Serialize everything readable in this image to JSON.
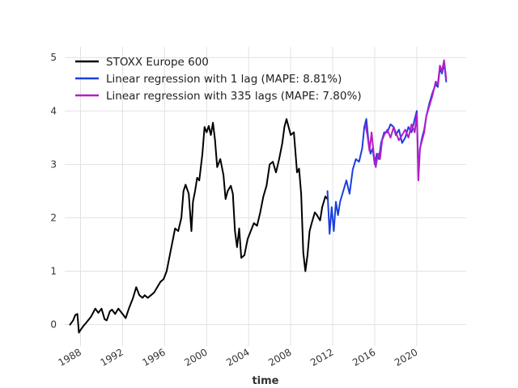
{
  "chart_data": {
    "type": "line",
    "title": "",
    "xlabel": "time",
    "ylabel": "",
    "xlim": [
      1986.5,
      2024.7
    ],
    "ylim": [
      -0.4,
      5.2
    ],
    "x_ticks": [
      1988,
      1992,
      1996,
      2000,
      2004,
      2008,
      2012,
      2016,
      2020
    ],
    "x_tick_labels": [
      "1988",
      "1992",
      "1996",
      "2000",
      "2004",
      "2008",
      "2012",
      "2016",
      "2020"
    ],
    "y_ticks": [
      0,
      1,
      2,
      3,
      4,
      5
    ],
    "y_tick_labels": [
      "0",
      "1",
      "2",
      "3",
      "4",
      "5"
    ],
    "grid": true,
    "legend_position": "top-left",
    "series": [
      {
        "name": "STOXX Europe 600",
        "color": "#000000",
        "x": [
          1987.0,
          1987.3,
          1987.5,
          1987.7,
          1987.85,
          1988.0,
          1988.3,
          1988.6,
          1989.0,
          1989.4,
          1989.7,
          1990.0,
          1990.3,
          1990.5,
          1990.8,
          1991.0,
          1991.3,
          1991.6,
          1992.0,
          1992.3,
          1992.6,
          1992.8,
          1993.0,
          1993.3,
          1993.6,
          1993.9,
          1994.1,
          1994.4,
          1994.7,
          1995.0,
          1995.3,
          1995.6,
          1995.9,
          1996.2,
          1996.5,
          1996.8,
          1997.0,
          1997.3,
          1997.6,
          1997.8,
          1998.0,
          1998.3,
          1998.55,
          1998.7,
          1998.9,
          1999.1,
          1999.3,
          1999.6,
          1999.8,
          2000.0,
          2000.2,
          2000.4,
          2000.6,
          2000.8,
          2001.0,
          2001.3,
          2001.6,
          2001.8,
          2002.0,
          2002.3,
          2002.5,
          2002.7,
          2002.9,
          2003.1,
          2003.3,
          2003.6,
          2003.9,
          2004.2,
          2004.5,
          2004.8,
          2005.1,
          2005.4,
          2005.7,
          2006.0,
          2006.3,
          2006.6,
          2006.9,
          2007.2,
          2007.4,
          2007.6,
          2007.8,
          2008.0,
          2008.3,
          2008.6,
          2008.8,
          2009.0,
          2009.2,
          2009.4,
          2009.6,
          2009.8,
          2010.0,
          2010.3,
          2010.5,
          2010.8,
          2011.0,
          2011.3,
          2011.5
        ],
        "values": [
          0.0,
          0.08,
          0.18,
          0.2,
          -0.15,
          -0.1,
          -0.02,
          0.05,
          0.15,
          0.3,
          0.22,
          0.3,
          0.1,
          0.08,
          0.25,
          0.28,
          0.2,
          0.3,
          0.2,
          0.12,
          0.3,
          0.4,
          0.5,
          0.7,
          0.55,
          0.5,
          0.55,
          0.5,
          0.55,
          0.6,
          0.7,
          0.8,
          0.85,
          1.0,
          1.3,
          1.6,
          1.8,
          1.75,
          2.0,
          2.5,
          2.62,
          2.45,
          1.75,
          2.3,
          2.5,
          2.75,
          2.7,
          3.2,
          3.7,
          3.6,
          3.72,
          3.55,
          3.78,
          3.45,
          2.95,
          3.1,
          2.8,
          2.35,
          2.5,
          2.6,
          2.45,
          1.75,
          1.45,
          1.8,
          1.25,
          1.3,
          1.6,
          1.75,
          1.9,
          1.85,
          2.1,
          2.4,
          2.6,
          3.0,
          3.05,
          2.85,
          3.1,
          3.4,
          3.7,
          3.85,
          3.7,
          3.55,
          3.6,
          2.85,
          2.92,
          2.45,
          1.35,
          1.0,
          1.3,
          1.75,
          1.9,
          2.1,
          2.05,
          1.95,
          2.2,
          2.4,
          2.35
        ]
      },
      {
        "name": "Linear regression with 1 lag (MAPE: 8.81%)",
        "color": "#1a3fe0",
        "x": [
          2011.5,
          2011.7,
          2011.9,
          2012.1,
          2012.3,
          2012.5,
          2012.7,
          2013.0,
          2013.3,
          2013.6,
          2013.9,
          2014.2,
          2014.5,
          2014.8,
          2015.0,
          2015.2,
          2015.4,
          2015.6,
          2015.8,
          2016.0,
          2016.2,
          2016.4,
          2016.6,
          2016.9,
          2017.2,
          2017.5,
          2017.8,
          2018.0,
          2018.3,
          2018.6,
          2018.9,
          2019.2,
          2019.5,
          2019.8,
          2020.0,
          2020.15,
          2020.3,
          2020.5,
          2020.7,
          2020.9,
          2021.2,
          2021.5,
          2021.8,
          2022.0,
          2022.2,
          2022.4,
          2022.6,
          2022.8
        ],
        "values": [
          2.5,
          1.7,
          2.2,
          1.75,
          2.3,
          2.05,
          2.3,
          2.5,
          2.7,
          2.45,
          2.9,
          3.1,
          3.05,
          3.3,
          3.7,
          3.85,
          3.45,
          3.2,
          3.3,
          3.0,
          3.2,
          3.1,
          3.4,
          3.6,
          3.6,
          3.75,
          3.7,
          3.55,
          3.65,
          3.4,
          3.5,
          3.7,
          3.6,
          3.85,
          4.0,
          2.8,
          3.3,
          3.5,
          3.65,
          3.9,
          4.15,
          4.35,
          4.5,
          4.45,
          4.8,
          4.7,
          4.9,
          4.55
        ]
      },
      {
        "name": "Linear regression with 335 lags (MAPE: 7.80%)",
        "color": "#b41ec8",
        "x": [
          2015.1,
          2015.3,
          2015.5,
          2015.7,
          2015.9,
          2016.1,
          2016.3,
          2016.5,
          2016.7,
          2016.9,
          2017.2,
          2017.5,
          2017.8,
          2018.0,
          2018.3,
          2018.6,
          2018.9,
          2019.2,
          2019.5,
          2019.8,
          2020.0,
          2020.15,
          2020.3,
          2020.5,
          2020.7,
          2020.9,
          2021.2,
          2021.5,
          2021.8,
          2022.0,
          2022.2,
          2022.4,
          2022.6,
          2022.8
        ],
        "values": [
          3.75,
          3.55,
          3.25,
          3.6,
          3.2,
          2.95,
          3.2,
          3.1,
          3.45,
          3.55,
          3.65,
          3.5,
          3.7,
          3.6,
          3.45,
          3.55,
          3.65,
          3.5,
          3.75,
          3.6,
          3.95,
          2.7,
          3.3,
          3.45,
          3.6,
          3.9,
          4.1,
          4.3,
          4.55,
          4.5,
          4.85,
          4.75,
          4.95,
          4.6
        ]
      }
    ]
  }
}
